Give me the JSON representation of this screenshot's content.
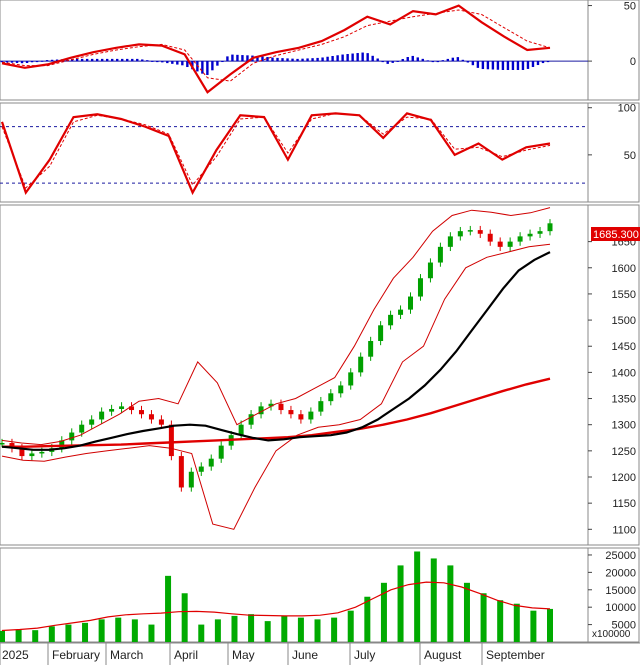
{
  "chart_data": {
    "type": "candlestick",
    "title": "",
    "period": "2025",
    "months": [
      "2025",
      "February",
      "March",
      "April",
      "May",
      "June",
      "July",
      "August",
      "September"
    ],
    "last_price_label": "1685.300",
    "colors": {
      "up": "#00a000",
      "down": "#e00000",
      "ma_fast": "#000000",
      "ma_slow": "#e00000",
      "bollinger": "#d00000",
      "macd_hist": "#0000cc",
      "volume": "#00aa00",
      "volume_ma": "#e00000",
      "ref_line": "#1a1aa0",
      "panel_border": "#888888"
    },
    "panels": [
      {
        "name": "macd",
        "ticks": [
          0,
          50
        ],
        "ylim": [
          -35,
          55
        ],
        "series": [
          {
            "name": "macd",
            "values": [
              -2,
              -6,
              -3,
              3,
              8,
              12,
              15,
              14,
              6,
              -28,
              -12,
              3,
              8,
              12,
              18,
              28,
              40,
              33,
              45,
              42,
              50,
              35,
              22,
              10,
              12
            ]
          },
          {
            "name": "signal",
            "values": [
              -1,
              -4,
              -4,
              1,
              6,
              10,
              13,
              15,
              10,
              -15,
              -18,
              -2,
              5,
              10,
              15,
              22,
              32,
              36,
              40,
              43,
              46,
              42,
              30,
              18,
              12
            ]
          }
        ]
      },
      {
        "name": "stochastic",
        "ticks": [
          50,
          100
        ],
        "ylim": [
          0,
          105
        ],
        "ref_lines": [
          80,
          20
        ],
        "series": [
          {
            "name": "k",
            "values": [
              85,
              10,
              45,
              90,
              93,
              88,
              80,
              70,
              10,
              55,
              92,
              90,
              45,
              92,
              94,
              92,
              68,
              94,
              87,
              50,
              62,
              45,
              58,
              62
            ]
          },
          {
            "name": "d",
            "values": [
              80,
              15,
              38,
              85,
              92,
              88,
              82,
              72,
              18,
              48,
              88,
              90,
              52,
              88,
              94,
              92,
              72,
              90,
              88,
              56,
              58,
              48,
              55,
              60
            ]
          }
        ]
      },
      {
        "name": "price",
        "ticks": [
          1100,
          1150,
          1200,
          1250,
          1300,
          1350,
          1400,
          1450,
          1500,
          1550,
          1600,
          1650
        ],
        "ylim": [
          1070,
          1720
        ],
        "close": [
          1265,
          1255,
          1240,
          1245,
          1248,
          1255,
          1270,
          1285,
          1300,
          1310,
          1325,
          1330,
          1335,
          1328,
          1320,
          1310,
          1300,
          1240,
          1180,
          1210,
          1220,
          1235,
          1260,
          1280,
          1300,
          1320,
          1335,
          1340,
          1328,
          1320,
          1310,
          1325,
          1345,
          1360,
          1375,
          1400,
          1430,
          1460,
          1490,
          1510,
          1520,
          1545,
          1580,
          1610,
          1640,
          1660,
          1670,
          1672,
          1665,
          1650,
          1640,
          1650,
          1660,
          1665,
          1670,
          1685
        ],
        "ma_fast": [
          1258,
          1255,
          1252,
          1252,
          1255,
          1260,
          1268,
          1275,
          1282,
          1288,
          1293,
          1298,
          1300,
          1298,
          1290,
          1282,
          1275,
          1270,
          1272,
          1276,
          1278,
          1280,
          1285,
          1295,
          1310,
          1330,
          1350,
          1375,
          1405,
          1440,
          1480,
          1520,
          1560,
          1595,
          1615,
          1630
        ],
        "ma_slow": [
          1258,
          1258,
          1259,
          1260,
          1261,
          1262,
          1264,
          1266,
          1268,
          1270,
          1272,
          1274,
          1276,
          1280,
          1286,
          1292,
          1300,
          1310,
          1322,
          1336,
          1350,
          1364,
          1377,
          1388
        ],
        "boll_upper": [
          1270,
          1265,
          1262,
          1268,
          1280,
          1300,
          1320,
          1345,
          1350,
          1340,
          1420,
          1380,
          1300,
          1320,
          1340,
          1350,
          1370,
          1390,
          1450,
          1520,
          1580,
          1620,
          1670,
          1700,
          1710,
          1706,
          1700,
          1705,
          1715
        ],
        "boll_lower": [
          1240,
          1232,
          1230,
          1238,
          1245,
          1250,
          1255,
          1260,
          1255,
          1245,
          1110,
          1100,
          1180,
          1250,
          1280,
          1295,
          1300,
          1310,
          1340,
          1420,
          1450,
          1540,
          1600,
          1620,
          1630,
          1640,
          1645
        ]
      },
      {
        "name": "volume",
        "unit": "x100000",
        "ticks": [
          5000,
          10000,
          15000,
          20000,
          25000
        ],
        "ylim": [
          0,
          27000
        ],
        "values": [
          3200,
          3500,
          3400,
          4500,
          5000,
          5500,
          6500,
          7000,
          6500,
          5000,
          19000,
          14000,
          5000,
          6500,
          7500,
          8000,
          6000,
          7500,
          7000,
          6500,
          7000,
          9000,
          13000,
          17000,
          22000,
          26000,
          24000,
          22000,
          17000,
          14000,
          12000,
          11000,
          9000,
          9500
        ],
        "ma": [
          3300,
          3600,
          4000,
          4800,
          5500,
          6200,
          7200,
          7800,
          8100,
          8300,
          8700,
          8800,
          8600,
          8100,
          7700,
          7600,
          7500,
          7500,
          7700,
          8400,
          10000,
          12500,
          15000,
          16500,
          17200,
          17000,
          15800,
          14000,
          12000,
          10500,
          9800,
          9500
        ]
      }
    ]
  }
}
